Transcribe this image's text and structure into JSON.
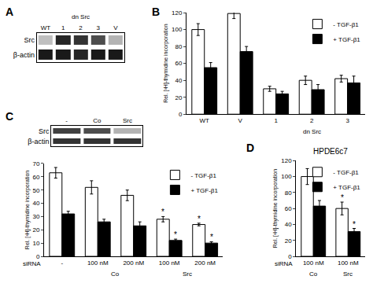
{
  "chart_data": [
    {
      "panel": "A",
      "type": "blot",
      "lanes": [
        "WT",
        "1",
        "2",
        "3",
        "V"
      ],
      "groups": [
        {
          "label": "dn Src",
          "start": 1,
          "end": 3
        }
      ],
      "rows": [
        {
          "name": "Src",
          "values": [
            0.25,
            0.85,
            0.8,
            0.7,
            0.3
          ]
        },
        {
          "name": "β-actin",
          "values": [
            0.9,
            0.9,
            0.85,
            0.9,
            0.9
          ]
        }
      ],
      "zlim": [
        0,
        1
      ]
    },
    {
      "panel": "B",
      "type": "bar",
      "categories": [
        "WT",
        "V",
        "1",
        "2",
        "3"
      ],
      "groups": [
        {
          "label": "dn Src",
          "start": 2,
          "end": 4
        }
      ],
      "y_label": "Rel. [³H]-thymidine incorporation",
      "ylim": [
        0,
        120
      ],
      "yticks": [
        0,
        20,
        40,
        60,
        80,
        100,
        120
      ],
      "grid": false,
      "legend": "top-right",
      "series": [
        {
          "name": "- TGF-β1",
          "color": "#ffffff",
          "values": [
            100,
            119,
            30,
            40,
            42
          ],
          "errors": [
            7,
            6,
            3,
            5,
            4
          ]
        },
        {
          "name": "+ TGF-β1",
          "color": "#000000",
          "values": [
            55,
            74,
            24,
            29,
            37
          ],
          "errors": [
            6,
            6,
            3,
            6,
            8
          ]
        }
      ]
    },
    {
      "panel": "C",
      "type": "bar",
      "categories": [
        "-",
        "100 nM",
        "200 nM",
        "100 nM",
        "200 nM"
      ],
      "groups": [
        {
          "label": "Co",
          "start": 1,
          "end": 2
        },
        {
          "label": "Src",
          "start": 3,
          "end": 4
        }
      ],
      "x_label": "siRNA",
      "y_label": "Rel. [³H]-thymidine incorporation",
      "ylim": [
        0,
        70
      ],
      "yticks": [
        0,
        10,
        20,
        30,
        40,
        50,
        60,
        70
      ],
      "grid": false,
      "legend": "top-right",
      "series": [
        {
          "name": "- TGF-β1",
          "color": "#ffffff",
          "values": [
            63,
            52,
            46,
            28,
            24
          ],
          "errors": [
            4,
            5,
            4,
            2,
            1
          ],
          "significance": [
            null,
            null,
            null,
            "*",
            "*"
          ]
        },
        {
          "name": "+ TGF-β1",
          "color": "#000000",
          "values": [
            32,
            26,
            23,
            12,
            10
          ],
          "errors": [
            2,
            2,
            3,
            1,
            1
          ],
          "significance": [
            null,
            null,
            null,
            "*",
            "*"
          ]
        }
      ],
      "blot": {
        "lanes": [
          "-",
          "Co",
          "Src"
        ],
        "rows": [
          {
            "name": "Src",
            "values": [
              0.75,
              0.7,
              0.3
            ]
          },
          {
            "name": "β-actin",
            "values": [
              0.8,
              0.8,
              0.8
            ]
          }
        ],
        "zlim": [
          0,
          1
        ]
      }
    },
    {
      "panel": "D",
      "type": "bar",
      "title": "HPDE6c7",
      "categories": [
        "100 nM",
        "100 nM"
      ],
      "groups": [
        {
          "label": "Co",
          "start": 0,
          "end": 0
        },
        {
          "label": "Src",
          "start": 1,
          "end": 1
        }
      ],
      "x_label": "siRNA",
      "y_label": "Rel. [³H]-thymidine incorporation",
      "ylim": [
        0,
        120
      ],
      "yticks": [
        0,
        20,
        40,
        60,
        80,
        100,
        120
      ],
      "grid": false,
      "legend": "top-right",
      "series": [
        {
          "name": "- TGF-β1",
          "color": "#ffffff",
          "values": [
            100,
            60
          ],
          "errors": [
            10,
            8
          ],
          "significance": [
            null,
            "*"
          ]
        },
        {
          "name": "+ TGF-β1",
          "color": "#000000",
          "values": [
            63,
            31
          ],
          "errors": [
            7,
            4
          ],
          "significance": [
            null,
            "*"
          ]
        }
      ]
    }
  ]
}
